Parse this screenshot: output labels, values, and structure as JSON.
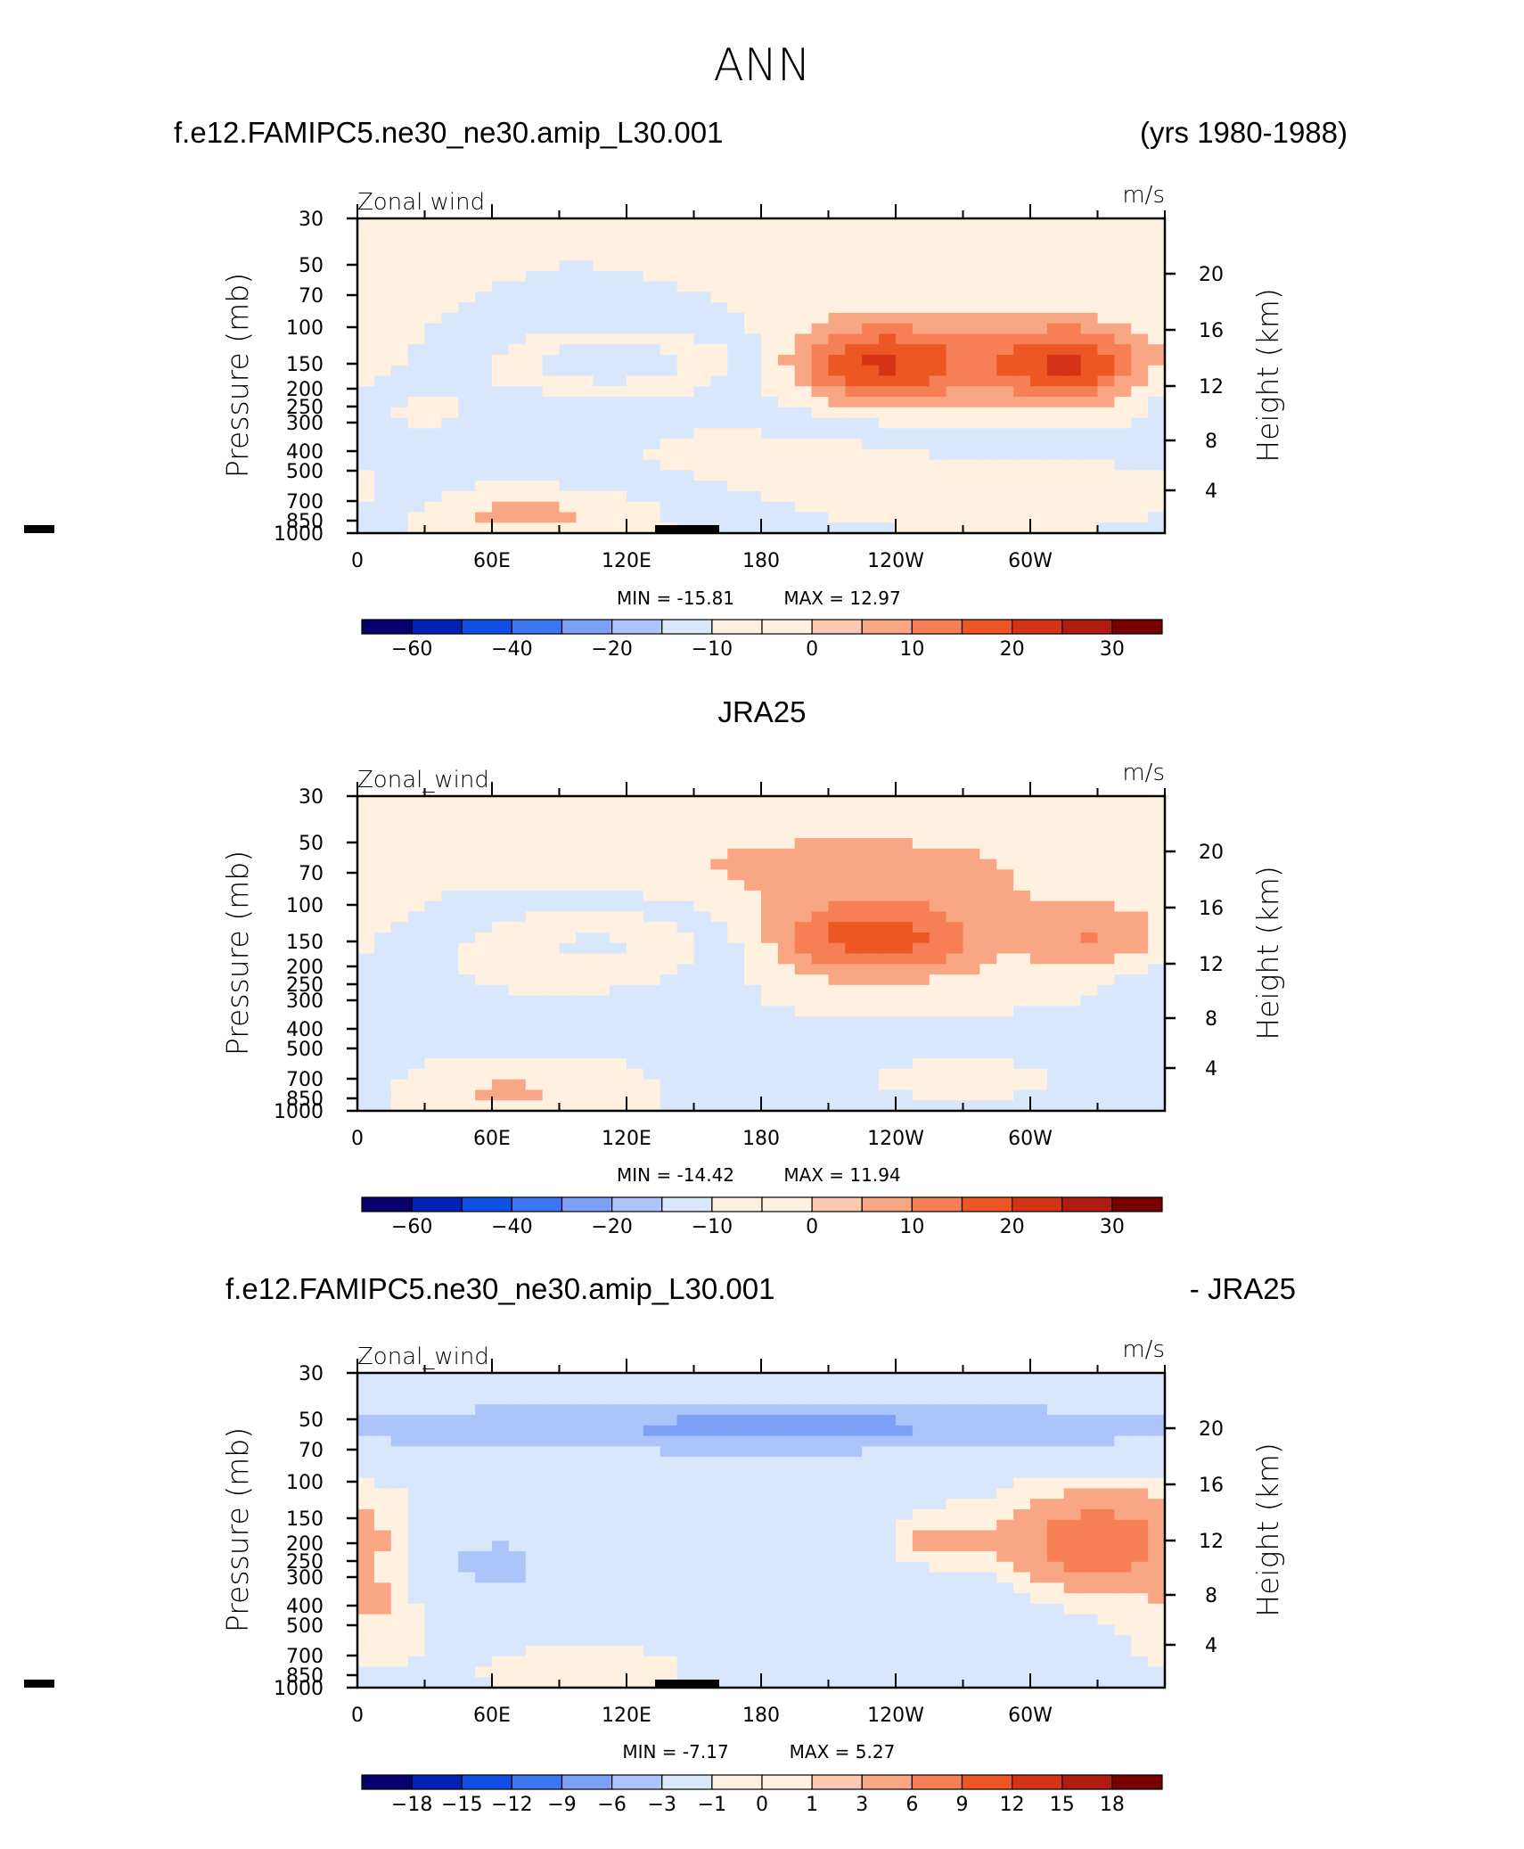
{
  "page": {
    "main_title": "ANN",
    "panel1_left": "f.e12.FAMIPC5.ne30_ne30.amip_L30.001",
    "panel1_right": "(yrs 1980-1988)",
    "panel2_center": "JRA25",
    "panel3_left": "f.e12.FAMIPC5.ne30_ne30.amip_L30.001",
    "panel3_right": "- JRA25"
  },
  "colors": {
    "palette": [
      "#08006e",
      "#0022b4",
      "#0e4fe6",
      "#3c76f2",
      "#7ca0f6",
      "#adc4fa",
      "#d9e7fc",
      "#fff0df",
      "#fccab0",
      "#f8a684",
      "#f67f56",
      "#ec5724",
      "#d43316",
      "#b01c10",
      "#7a0000"
    ]
  },
  "chart_data": [
    {
      "type": "heatmap",
      "name": "model",
      "left_label": "Zonal wind",
      "right_label": "m/s",
      "ylabel": "Pressure (mb)",
      "ylabel_right": "Height (km)",
      "y_ticks": [
        "30",
        "50",
        "70",
        "100",
        "150",
        "200",
        "250",
        "300",
        "400",
        "500",
        "700",
        "850",
        "1000"
      ],
      "y_right_ticks": [
        "20",
        "16",
        "12",
        "8",
        "4"
      ],
      "x_ticks": [
        "0",
        "60E",
        "120E",
        "180",
        "120W",
        "60W"
      ],
      "ylim": [
        1000,
        30
      ],
      "xlim": [
        0,
        360
      ],
      "min": "-15.81",
      "max": "12.97",
      "min_label": "MIN = -15.81",
      "max_label": "MAX = 12.97",
      "colorbar_labels": [
        "-60",
        "-40",
        "-20",
        "-10",
        "0",
        "10",
        "20",
        "30"
      ],
      "blobs": [
        {
          "lon": 120,
          "p": 150,
          "dlon": 45,
          "dp": 0.28,
          "v": -12
        },
        {
          "lon": 100,
          "p": 150,
          "dlon": 18,
          "dp": 0.15,
          "v": -3
        },
        {
          "lon": 230,
          "p": 150,
          "dlon": 28,
          "dp": 0.3,
          "v": 16
        },
        {
          "lon": 317,
          "p": 150,
          "dlon": 22,
          "dp": 0.28,
          "v": 16
        },
        {
          "lon": 275,
          "p": 150,
          "dlon": 60,
          "dp": 0.45,
          "v": 7
        },
        {
          "lon": 175,
          "p": 400,
          "dlon": 70,
          "dp": 0.35,
          "v": -6
        },
        {
          "lon": 260,
          "p": 700,
          "dlon": 60,
          "dp": 0.35,
          "v": -7
        },
        {
          "lon": 340,
          "p": 650,
          "dlon": 40,
          "dp": 0.3,
          "v": -6
        },
        {
          "lon": 70,
          "p": 800,
          "dlon": 38,
          "dp": 0.2,
          "v": 7
        },
        {
          "lon": 25,
          "p": 250,
          "dlon": 25,
          "dp": 0.25,
          "v": -6
        }
      ]
    },
    {
      "type": "heatmap",
      "name": "obs",
      "left_label": "Zonal_wind",
      "right_label": "m/s",
      "ylabel": "Pressure (mb)",
      "ylabel_right": "Height (km)",
      "y_ticks": [
        "30",
        "50",
        "70",
        "100",
        "150",
        "200",
        "250",
        "300",
        "400",
        "500",
        "700",
        "850",
        "1000"
      ],
      "y_right_ticks": [
        "20",
        "16",
        "12",
        "8",
        "4"
      ],
      "x_ticks": [
        "0",
        "60E",
        "120E",
        "180",
        "120W",
        "60W"
      ],
      "ylim": [
        1000,
        30
      ],
      "xlim": [
        0,
        360
      ],
      "min": "-14.42",
      "max": "11.94",
      "min_label": "MIN = -14.42",
      "max_label": "MAX = 11.94",
      "colorbar_labels": [
        "-60",
        "-40",
        "-20",
        "-10",
        "0",
        "10",
        "20",
        "30"
      ],
      "blobs": [
        {
          "lon": 110,
          "p": 150,
          "dlon": 42,
          "dp": 0.3,
          "v": -10
        },
        {
          "lon": 230,
          "p": 150,
          "dlon": 30,
          "dp": 0.28,
          "v": 14
        },
        {
          "lon": 240,
          "p": 100,
          "dlon": 70,
          "dp": 0.6,
          "v": 6
        },
        {
          "lon": 335,
          "p": 150,
          "dlon": 22,
          "dp": 0.25,
          "v": 9
        },
        {
          "lon": 180,
          "p": 60,
          "dlon": 90,
          "dp": 0.25,
          "v": 3
        },
        {
          "lon": 80,
          "p": 250,
          "dlon": 60,
          "dp": 0.35,
          "v": -4
        },
        {
          "lon": 270,
          "p": 700,
          "dlon": 70,
          "dp": 0.35,
          "v": -6
        },
        {
          "lon": 65,
          "p": 800,
          "dlon": 35,
          "dp": 0.2,
          "v": 6
        },
        {
          "lon": 5,
          "p": 200,
          "dlon": 20,
          "dp": 0.3,
          "v": -4
        }
      ]
    },
    {
      "type": "heatmap",
      "name": "diff",
      "left_label": "Zonal_wind",
      "right_label": "m/s",
      "ylabel": "Pressure (mb)",
      "ylabel_right": "Height (km)",
      "y_ticks": [
        "30",
        "50",
        "70",
        "100",
        "150",
        "200",
        "250",
        "300",
        "400",
        "500",
        "700",
        "850",
        "1000"
      ],
      "y_right_ticks": [
        "20",
        "16",
        "12",
        "8",
        "4"
      ],
      "x_ticks": [
        "0",
        "60E",
        "120E",
        "180",
        "120W",
        "60W"
      ],
      "ylim": [
        1000,
        30
      ],
      "xlim": [
        0,
        360
      ],
      "min": "-7.17",
      "max": "5.27",
      "min_label": "MIN = -7.17",
      "max_label": "MAX = 5.27",
      "colorbar_labels": [
        "-18",
        "-15",
        "-12",
        "-9",
        "-6",
        "-3",
        "-1",
        "0",
        "1",
        "3",
        "6",
        "9",
        "12",
        "15",
        "18"
      ],
      "blobs": [
        {
          "lon": 180,
          "p": 55,
          "dlon": 200,
          "dp": 0.25,
          "v": -5
        },
        {
          "lon": 190,
          "p": 55,
          "dlon": 40,
          "dp": 0.1,
          "v": -4
        },
        {
          "lon": 170,
          "p": 300,
          "dlon": 75,
          "dp": 0.65,
          "v": -3
        },
        {
          "lon": 55,
          "p": 250,
          "dlon": 25,
          "dp": 0.4,
          "v": -2.5
        },
        {
          "lon": 330,
          "p": 200,
          "dlon": 28,
          "dp": 0.35,
          "v": 5
        },
        {
          "lon": 255,
          "p": 200,
          "dlon": 18,
          "dp": 0.25,
          "v": 2.5
        },
        {
          "lon": 110,
          "p": 750,
          "dlon": 30,
          "dp": 0.2,
          "v": 1.8
        },
        {
          "lon": 15,
          "p": 400,
          "dlon": 15,
          "dp": 0.3,
          "v": 1.5
        }
      ]
    }
  ]
}
